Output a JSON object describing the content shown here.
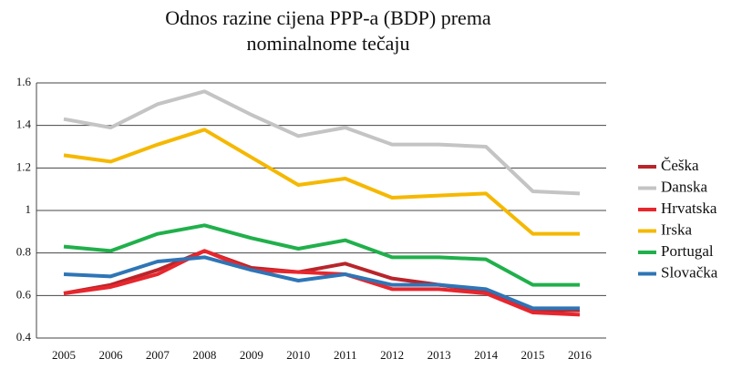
{
  "chart_data": {
    "type": "line",
    "title": "Odnos razine cijena PPP-a (BDP) prema nominalnome tečaju",
    "categories": [
      "2005",
      "2006",
      "2007",
      "2008",
      "2009",
      "2010",
      "2011",
      "2012",
      "2013",
      "2014",
      "2015",
      "2016"
    ],
    "series": [
      {
        "name": "Češka",
        "color": "#b8252b",
        "values": [
          0.61,
          0.65,
          0.72,
          0.81,
          0.73,
          0.71,
          0.75,
          0.68,
          0.65,
          0.62,
          0.53,
          0.53
        ]
      },
      {
        "name": "Danska",
        "color": "#c4c4c4",
        "values": [
          1.43,
          1.39,
          1.5,
          1.56,
          1.45,
          1.35,
          1.39,
          1.31,
          1.31,
          1.3,
          1.09,
          1.08
        ]
      },
      {
        "name": "Hrvatska",
        "color": "#e8262d",
        "values": [
          0.61,
          0.64,
          0.7,
          0.81,
          0.72,
          0.71,
          0.7,
          0.63,
          0.63,
          0.61,
          0.52,
          0.51
        ]
      },
      {
        "name": "Irska",
        "color": "#f5b800",
        "values": [
          1.26,
          1.23,
          1.31,
          1.38,
          1.25,
          1.12,
          1.15,
          1.06,
          1.07,
          1.08,
          0.89,
          0.89
        ]
      },
      {
        "name": "Portugal",
        "color": "#20b04b",
        "values": [
          0.83,
          0.81,
          0.89,
          0.93,
          0.87,
          0.82,
          0.86,
          0.78,
          0.78,
          0.77,
          0.65,
          0.65
        ]
      },
      {
        "name": "Slovačka",
        "color": "#2e75b6",
        "values": [
          0.7,
          0.69,
          0.76,
          0.78,
          0.72,
          0.67,
          0.7,
          0.65,
          0.65,
          0.63,
          0.54,
          0.54
        ]
      }
    ],
    "ylim": [
      0.4,
      1.6
    ],
    "yticks": [
      0.4,
      0.6,
      0.8,
      1,
      1.2,
      1.4,
      1.6
    ],
    "grid": true,
    "legend": "right"
  }
}
